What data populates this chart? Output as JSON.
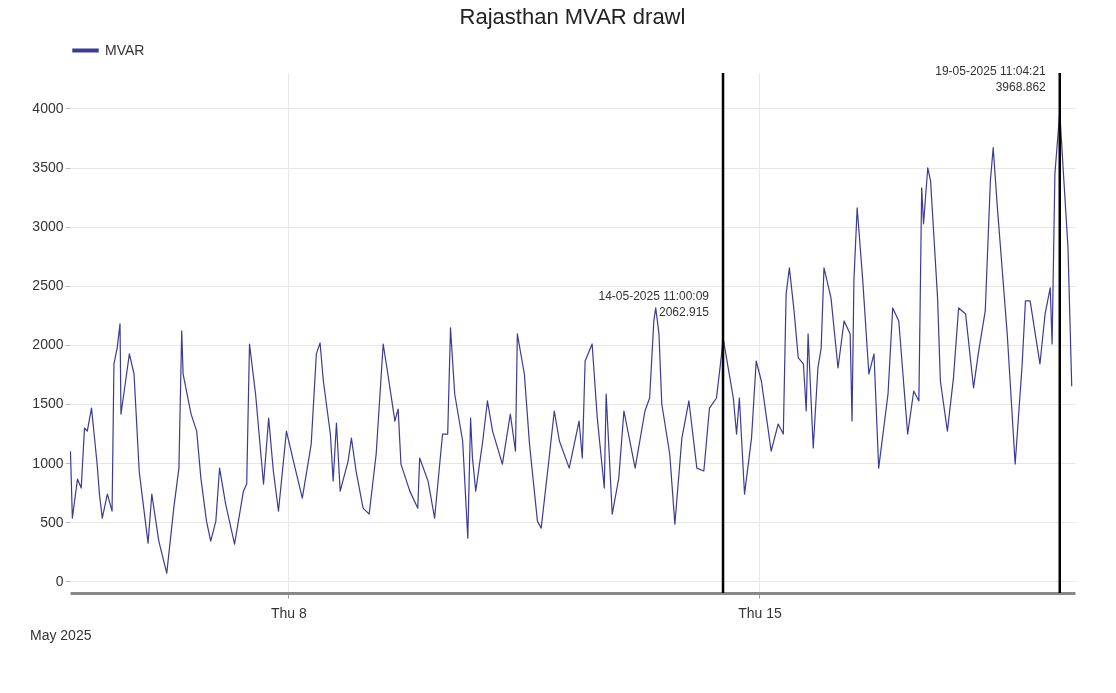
{
  "chart_data": {
    "type": "line",
    "title": "Rajasthan MVAR drawl",
    "x": [
      "2025-05-04T18:20",
      "2025-05-04T19:00",
      "2025-05-04T20:50",
      "2025-05-04T22:10",
      "2025-05-04T23:20",
      "2025-05-05T00:20",
      "2025-05-05T01:50",
      "2025-05-05T03:50",
      "2025-05-05T04:40",
      "2025-05-05T05:40",
      "2025-05-05T07:30",
      "2025-05-05T09:10",
      "2025-05-05T09:50",
      "2025-05-05T11:00",
      "2025-05-05T12:00",
      "2025-05-05T12:20",
      "2025-05-05T13:30",
      "2025-05-05T15:20",
      "2025-05-05T17:00",
      "2025-05-05T18:50",
      "2025-05-05T19:50",
      "2025-05-05T22:00",
      "2025-05-05T23:20",
      "2025-05-06T01:50",
      "2025-05-06T04:40",
      "2025-05-06T07:10",
      "2025-05-06T09:00",
      "2025-05-06T10:00",
      "2025-05-06T10:30",
      "2025-05-06T13:20",
      "2025-05-06T15:20",
      "2025-05-06T16:50",
      "2025-05-06T18:50",
      "2025-05-06T20:20",
      "2025-05-06T22:10",
      "2025-05-06T23:30",
      "2025-05-07T01:40",
      "2025-05-07T04:50",
      "2025-05-07T08:00",
      "2025-05-07T09:10",
      "2025-05-07T10:10",
      "2025-05-07T12:20",
      "2025-05-07T15:10",
      "2025-05-07T17:00",
      "2025-05-07T18:40",
      "2025-05-07T20:30",
      "2025-05-07T23:20",
      "2025-05-08T01:50",
      "2025-05-08T05:00",
      "2025-05-08T08:10",
      "2025-05-08T10:00",
      "2025-05-08T11:20",
      "2025-05-08T12:30",
      "2025-05-08T15:00",
      "2025-05-08T16:00",
      "2025-05-08T17:10",
      "2025-05-08T18:30",
      "2025-05-08T21:20",
      "2025-05-08T22:30",
      "2025-05-09T00:10",
      "2025-05-09T02:40",
      "2025-05-09T04:50",
      "2025-05-09T07:20",
      "2025-05-09T09:50",
      "2025-05-09T11:30",
      "2025-05-09T14:00",
      "2025-05-09T15:10",
      "2025-05-09T16:10",
      "2025-05-09T19:20",
      "2025-05-09T22:10",
      "2025-05-09T22:50",
      "2025-05-10T01:50",
      "2025-05-10T04:10",
      "2025-05-10T07:00",
      "2025-05-10T08:50",
      "2025-05-10T09:50",
      "2025-05-10T11:20",
      "2025-05-10T14:10",
      "2025-05-10T16:00",
      "2025-05-10T17:00",
      "2025-05-10T17:40",
      "2025-05-10T18:50",
      "2025-05-10T21:20",
      "2025-05-10T23:00",
      "2025-05-11T00:50",
      "2025-05-11T04:20",
      "2025-05-11T07:10",
      "2025-05-11T09:00",
      "2025-05-11T09:40",
      "2025-05-11T12:10",
      "2025-05-11T14:00",
      "2025-05-11T16:50",
      "2025-05-11T18:10",
      "2025-05-11T21:00",
      "2025-05-11T22:50",
      "2025-05-12T00:40",
      "2025-05-12T04:10",
      "2025-05-12T07:40",
      "2025-05-12T08:50",
      "2025-05-12T09:50",
      "2025-05-12T12:20",
      "2025-05-12T14:10",
      "2025-05-12T16:40",
      "2025-05-12T17:20",
      "2025-05-12T19:30",
      "2025-05-12T21:50",
      "2025-05-12T23:40",
      "2025-05-13T03:40",
      "2025-05-13T07:10",
      "2025-05-13T08:50",
      "2025-05-13T10:20",
      "2025-05-13T11:00",
      "2025-05-13T12:10",
      "2025-05-13T13:10",
      "2025-05-13T16:00",
      "2025-05-13T17:50",
      "2025-05-13T20:20",
      "2025-05-13T22:50",
      "2025-05-14T01:40",
      "2025-05-14T04:10",
      "2025-05-14T06:10",
      "2025-05-14T08:40",
      "2025-05-14T10:30",
      "2025-05-14T11:00",
      "2025-05-14T14:40",
      "2025-05-14T15:50",
      "2025-05-14T16:50",
      "2025-05-14T18:40",
      "2025-05-14T21:10",
      "2025-05-14T22:50",
      "2025-05-15T00:40",
      "2025-05-15T04:10",
      "2025-05-15T06:40",
      "2025-05-15T08:30",
      "2025-05-15T09:30",
      "2025-05-15T10:40",
      "2025-05-15T12:20",
      "2025-05-15T13:50",
      "2025-05-15T15:40",
      "2025-05-15T16:40",
      "2025-05-15T17:20",
      "2025-05-15T19:10",
      "2025-05-15T20:50",
      "2025-05-15T22:00",
      "2025-05-15T23:00",
      "2025-05-16T01:30",
      "2025-05-16T04:00",
      "2025-05-16T06:10",
      "2025-05-16T08:20",
      "2025-05-16T09:00",
      "2025-05-16T09:40",
      "2025-05-16T10:50",
      "2025-05-16T12:50",
      "2025-05-16T15:00",
      "2025-05-16T16:50",
      "2025-05-16T18:30",
      "2025-05-16T21:50",
      "2025-05-16T23:30",
      "2025-05-17T01:40",
      "2025-05-17T04:50",
      "2025-05-17T07:00",
      "2025-05-17T08:50",
      "2025-05-17T09:50",
      "2025-05-17T10:30",
      "2025-05-17T12:00",
      "2025-05-17T13:00",
      "2025-05-17T15:30",
      "2025-05-17T16:30",
      "2025-05-17T19:00",
      "2025-05-17T21:10",
      "2025-05-17T23:00",
      "2025-05-18T01:30",
      "2025-05-18T04:20",
      "2025-05-18T06:00",
      "2025-05-18T08:30",
      "2025-05-18T10:20",
      "2025-05-18T11:20",
      "2025-05-18T12:50",
      "2025-05-18T16:20",
      "2025-05-18T19:10",
      "2025-05-18T21:40",
      "2025-05-18T22:50",
      "2025-05-19T00:30",
      "2025-05-19T04:00",
      "2025-05-19T05:50",
      "2025-05-19T07:40",
      "2025-05-19T08:20",
      "2025-05-19T09:20",
      "2025-05-19T11:04",
      "2025-05-19T12:10",
      "2025-05-19T14:00",
      "2025-05-19T15:20"
    ],
    "series": [
      {
        "name": "MVAR",
        "color": "#3b3b98",
        "values": [
          1100,
          534,
          864,
          788,
          1296,
          1270,
          1465,
          991,
          737,
          534,
          737,
          593,
          1838,
          1974,
          2177,
          1414,
          1609,
          1923,
          1753,
          932,
          737,
          322,
          737,
          339,
          68,
          618,
          957,
          2118,
          1753,
          1414,
          1270,
          872,
          508,
          339,
          508,
          957,
          652,
          313,
          762,
          822,
          2007,
          1584,
          822,
          1380,
          932,
          593,
          1270,
          1016,
          703,
          1160,
          1923,
          2016,
          1694,
          1245,
          847,
          1338,
          762,
          1016,
          1211,
          932,
          618,
          567,
          1076,
          2007,
          1753,
          1355,
          1457,
          991,
          762,
          618,
          1042,
          847,
          534,
          1245,
          1245,
          2143,
          1584,
          1186,
          364,
          1380,
          1042,
          762,
          1186,
          1525,
          1270,
          991,
          1414,
          1101,
          2092,
          1753,
          1160,
          508,
          449,
          1042,
          1440,
          1186,
          957,
          1355,
          1042,
          1863,
          2007,
          1380,
          788,
          1584,
          567,
          872,
          1440,
          957,
          1440,
          1550,
          2202,
          2312,
          2092,
          1499,
          1076,
          483,
          1211,
          1525,
          957,
          932,
          1465,
          1550,
          1923,
          2062.915,
          1550,
          1245,
          1550,
          737,
          1211,
          1863,
          1694,
          1101,
          1330,
          1245,
          2431,
          2651,
          2287,
          1889,
          1838,
          1440,
          2092,
          1127,
          1804,
          1974,
          2651,
          2397,
          1804,
          2202,
          2092,
          1355,
          2541,
          3159,
          2541,
          1753,
          1923,
          957,
          1584,
          2312,
          2202,
          1245,
          1609,
          1525,
          3329,
          3024,
          3498,
          3388,
          2397,
          1694,
          1270,
          1720,
          2312,
          2261,
          1635,
          1923,
          2287,
          3388,
          3668,
          3159,
          2092,
          991,
          1838,
          2372,
          2372,
          1838,
          2261,
          2482,
          2007,
          3447,
          3968.862,
          3532,
          2820,
          1650
        ]
      }
    ],
    "xlim": [
      "2025-05-04T18:10",
      "2025-05-19T16:30"
    ],
    "xticks": [
      {
        "value": "2025-05-08",
        "label": "Thu 8"
      },
      {
        "value": "2025-05-15",
        "label": "Thu 15"
      }
    ],
    "ylim": [
      -100,
      4300
    ],
    "yticks": [
      0,
      500,
      1000,
      1500,
      2000,
      2500,
      3000,
      3500,
      4000
    ],
    "ref_lines": [
      {
        "axis": "x",
        "value": "2025-05-14T11:00",
        "color": "#000000"
      },
      {
        "axis": "x",
        "value": "2025-05-19T11:04",
        "color": "#000000"
      }
    ],
    "annotations": [
      {
        "text": "14-05-2025  11:00:09\n2062.915",
        "x": "2025-05-14T11:00",
        "y": 2062.915
      },
      {
        "text": "19-05-2025  11:04:21\n3968.862",
        "x": "2025-05-19T11:04",
        "y": 3968.862
      },
      "May 2025"
    ],
    "grid": true,
    "legend": "top left"
  }
}
